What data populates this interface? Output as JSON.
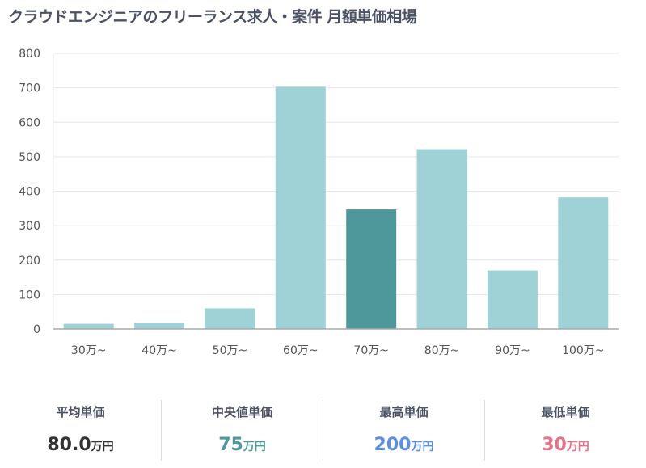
{
  "chart_data": {
    "type": "bar",
    "title": "クラウドエンジニアのフリーランス求人・案件 月額単価相場",
    "categories": [
      "30万~",
      "40万~",
      "50万~",
      "60万~",
      "70万~",
      "80万~",
      "90万~",
      "100万~"
    ],
    "values": [
      15,
      17,
      60,
      703,
      347,
      522,
      170,
      382
    ],
    "highlight_index": 4,
    "ylim": [
      0,
      800
    ],
    "yticks": [
      0,
      100,
      200,
      300,
      400,
      500,
      600,
      700,
      800
    ],
    "grid": true,
    "xlabel": "",
    "ylabel": ""
  },
  "colors": {
    "bar": "#9fd2d6",
    "highlight": "#4e989c",
    "avg": "#333333",
    "median": "#4e989c",
    "max": "#5b8fe0",
    "min": "#e5738a"
  },
  "stats": [
    {
      "label": "平均単価",
      "value": "80.0",
      "unit": "万円"
    },
    {
      "label": "中央値単価",
      "value": "75",
      "unit": "万円"
    },
    {
      "label": "最高単価",
      "value": "200",
      "unit": "万円"
    },
    {
      "label": "最低単価",
      "value": "30",
      "unit": "万円"
    }
  ]
}
